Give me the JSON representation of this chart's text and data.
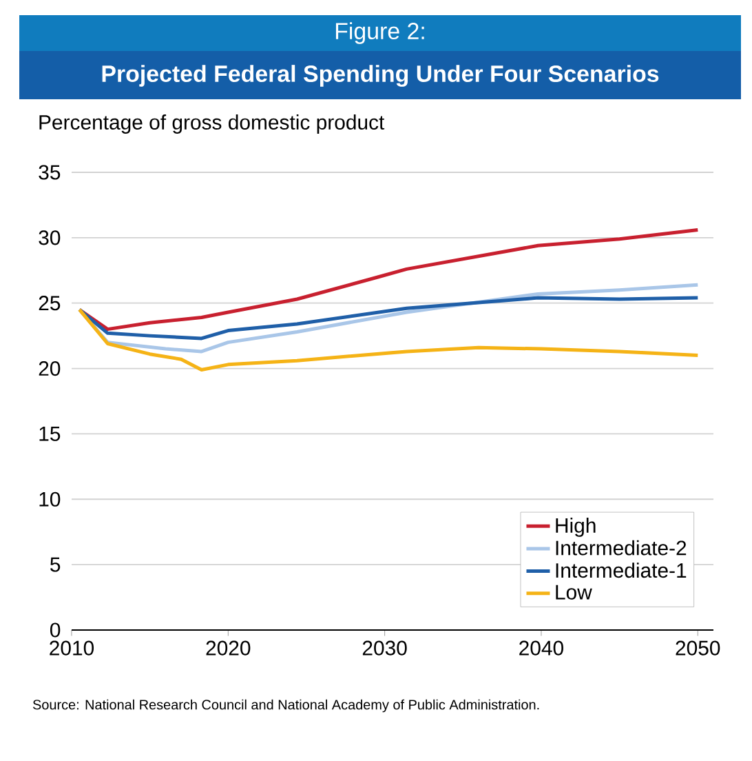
{
  "chart_data": {
    "type": "line",
    "title": "Figure 2:",
    "subtitle": "Projected Federal Spending Under Four Scenarios",
    "ylabel": "Percentage of gross domestic product",
    "annotations": [
      "Source: National Research Council and National Academy of Public Administration."
    ],
    "xlim": [
      2010,
      2051
    ],
    "xticks": [
      2010,
      2020,
      2030,
      2040,
      2050
    ],
    "ylim": [
      0,
      35
    ],
    "yticks": [
      0,
      5,
      10,
      15,
      20,
      25,
      30,
      35
    ],
    "grid": "y",
    "legend": "bottom right",
    "marker": "none",
    "line_style": "solid",
    "series": [
      {
        "name": "High",
        "color": "#c8202f",
        "x": [
          2010.5,
          2012.3,
          2015,
          2018.3,
          2020,
          2024.4,
          2029.6,
          2031.4,
          2039.8,
          2045,
          2050
        ],
        "values": [
          24.5,
          23.0,
          23.5,
          23.9,
          24.3,
          25.3,
          27.0,
          27.6,
          29.4,
          29.9,
          30.6
        ]
      },
      {
        "name": "Intermediate-2",
        "color": "#a9c6e8",
        "x": [
          2010.5,
          2012.3,
          2016,
          2018.3,
          2020,
          2024.4,
          2031.4,
          2039.8,
          2045,
          2050
        ],
        "values": [
          24.5,
          22.0,
          21.5,
          21.3,
          22.0,
          22.8,
          24.3,
          25.7,
          26.0,
          26.4
        ]
      },
      {
        "name": "Intermediate-1",
        "color": "#1f5fa8",
        "x": [
          2010.5,
          2012.3,
          2015,
          2018.3,
          2020,
          2024.4,
          2031.4,
          2039.8,
          2045,
          2050
        ],
        "values": [
          24.5,
          22.7,
          22.5,
          22.3,
          22.9,
          23.4,
          24.6,
          25.4,
          25.3,
          25.4
        ]
      },
      {
        "name": "Low",
        "color": "#f5b316",
        "x": [
          2010.5,
          2012.3,
          2015,
          2017,
          2018.3,
          2020,
          2024.4,
          2031.4,
          2036,
          2040,
          2045,
          2050
        ],
        "values": [
          24.5,
          21.9,
          21.1,
          20.7,
          19.9,
          20.3,
          20.6,
          21.3,
          21.6,
          21.5,
          21.3,
          21.0
        ]
      }
    ]
  }
}
